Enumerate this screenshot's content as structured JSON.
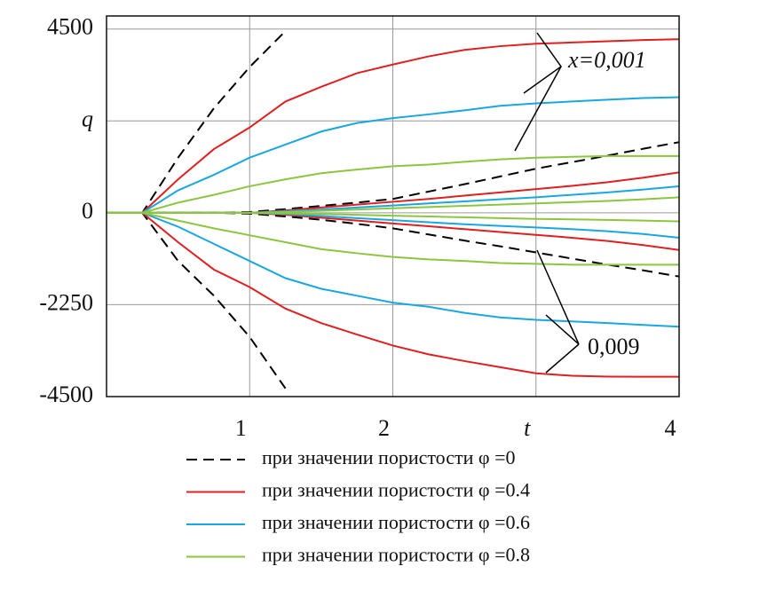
{
  "chart_data": {
    "type": "line",
    "xlim": [
      0,
      4
    ],
    "ylim": [
      -4500,
      4820
    ],
    "xticks": [
      1,
      2,
      {
        "value": 3,
        "label": "t"
      },
      4
    ],
    "yticks": [
      -4500,
      -2250,
      0,
      {
        "value": 2250,
        "label": "q"
      },
      4500
    ],
    "grid": true,
    "annotations": [
      "x=0,001",
      "0,009"
    ],
    "x": [
      0,
      0.25,
      0.5,
      0.75,
      1,
      1.25,
      1.5,
      1.75,
      2,
      2.25,
      2.5,
      2.75,
      3,
      3.25,
      3.5,
      3.75,
      4
    ],
    "series": [
      {
        "name": "при значении пористости φ =0",
        "color": "#000000",
        "dashed": true,
        "curves": [
          [
            0,
            0,
            1350,
            2560,
            3570,
            4450,
            null,
            null,
            null,
            null,
            null,
            null,
            null,
            null,
            null,
            null,
            null
          ],
          [
            0,
            0,
            -1180,
            -2030,
            -3040,
            -4300,
            null,
            null,
            null,
            null,
            null,
            null,
            null,
            null,
            null,
            null,
            null
          ],
          [
            0,
            0,
            0,
            0,
            20,
            90,
            170,
            250,
            340,
            520,
            700,
            890,
            1080,
            1240,
            1400,
            1570,
            1730
          ],
          [
            0,
            0,
            0,
            0,
            -20,
            -90,
            -170,
            -270,
            -380,
            -530,
            -680,
            -820,
            -970,
            -1120,
            -1270,
            -1410,
            -1560
          ]
        ]
      },
      {
        "name": "при значении пористости φ =0.4",
        "color": "#e02020",
        "dashed": false,
        "curves": [
          [
            0,
            0,
            820,
            1560,
            2090,
            2725,
            3085,
            3420,
            3630,
            3830,
            3990,
            4080,
            4140,
            4170,
            4200,
            4230,
            4250
          ],
          [
            0,
            0,
            -720,
            -1390,
            -1820,
            -2345,
            -2700,
            -2980,
            -3250,
            -3465,
            -3630,
            -3780,
            -3930,
            -3990,
            -4010,
            -4015,
            -4015
          ],
          [
            0,
            0,
            0,
            0,
            0,
            60,
            130,
            200,
            270,
            340,
            420,
            500,
            580,
            660,
            750,
            860,
            990
          ],
          [
            0,
            0,
            0,
            0,
            0,
            -50,
            -120,
            -190,
            -260,
            -330,
            -400,
            -470,
            -540,
            -610,
            -690,
            -790,
            -910
          ]
        ]
      },
      {
        "name": "при значении пористости φ =0.6",
        "color": "#1aa7e0",
        "dashed": false,
        "curves": [
          [
            0,
            0,
            550,
            930,
            1350,
            1670,
            1990,
            2200,
            2320,
            2410,
            2510,
            2620,
            2680,
            2725,
            2770,
            2810,
            2830
          ],
          [
            0,
            0,
            -340,
            -760,
            -1180,
            -1600,
            -1860,
            -2030,
            -2200,
            -2300,
            -2450,
            -2560,
            -2620,
            -2660,
            -2700,
            -2745,
            -2790
          ],
          [
            0,
            0,
            0,
            0,
            0,
            40,
            80,
            130,
            180,
            230,
            280,
            330,
            380,
            440,
            500,
            570,
            650
          ],
          [
            0,
            0,
            0,
            0,
            0,
            -30,
            -80,
            -130,
            -180,
            -230,
            -280,
            -320,
            -360,
            -400,
            -450,
            -520,
            -610
          ]
        ]
      },
      {
        "name": "при значении пористости φ =0.8",
        "color": "#8cc63f",
        "dashed": false,
        "curves": [
          [
            0,
            0,
            250,
            440,
            650,
            820,
            970,
            1060,
            1140,
            1180,
            1250,
            1310,
            1350,
            1370,
            1390,
            1390,
            1390
          ],
          [
            0,
            0,
            -190,
            -380,
            -550,
            -720,
            -890,
            -990,
            -1080,
            -1140,
            -1180,
            -1230,
            -1250,
            -1270,
            -1270,
            -1270,
            -1270
          ],
          [
            0,
            0,
            0,
            0,
            0,
            20,
            50,
            80,
            110,
            140,
            170,
            200,
            230,
            260,
            290,
            330,
            380
          ],
          [
            0,
            0,
            0,
            0,
            0,
            -15,
            -30,
            -50,
            -70,
            -90,
            -110,
            -130,
            -150,
            -160,
            -175,
            -190,
            -210
          ]
        ]
      }
    ]
  }
}
